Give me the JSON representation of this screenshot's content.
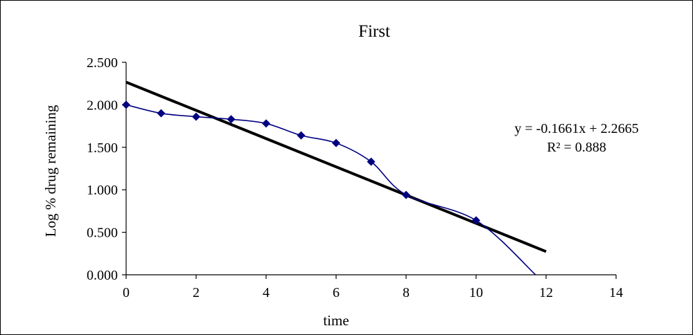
{
  "chart_data": {
    "type": "scatter",
    "title": "First",
    "xlabel": "time",
    "ylabel": "Log % drug remaining",
    "xlim": [
      0,
      14
    ],
    "ylim": [
      0,
      2.5
    ],
    "x_ticks": [
      "0",
      "2",
      "4",
      "6",
      "8",
      "10",
      "12",
      "14"
    ],
    "y_ticks": [
      "0.000",
      "0.500",
      "1.000",
      "1.500",
      "2.000",
      "2.500"
    ],
    "grid": false,
    "legend": "none",
    "series": [
      {
        "kind": "smooth-line-markers",
        "color": "#000080",
        "marker": "diamond",
        "x": [
          0,
          1,
          2,
          3,
          4,
          5,
          6,
          7,
          8,
          10,
          11.7
        ],
        "y": [
          2.0,
          1.9,
          1.86,
          1.83,
          1.78,
          1.64,
          1.55,
          1.33,
          0.94,
          0.64,
          0.0
        ],
        "markers_shown": [
          true,
          true,
          true,
          true,
          true,
          true,
          true,
          true,
          true,
          true,
          false
        ]
      },
      {
        "kind": "trendline",
        "color": "#000000",
        "slope": -0.1661,
        "intercept": 2.2665,
        "x_range": [
          0,
          12
        ]
      }
    ],
    "annotations": {
      "equation": "y = -0.1661x + 2.2665",
      "r_squared": "R² = 0.888"
    }
  }
}
